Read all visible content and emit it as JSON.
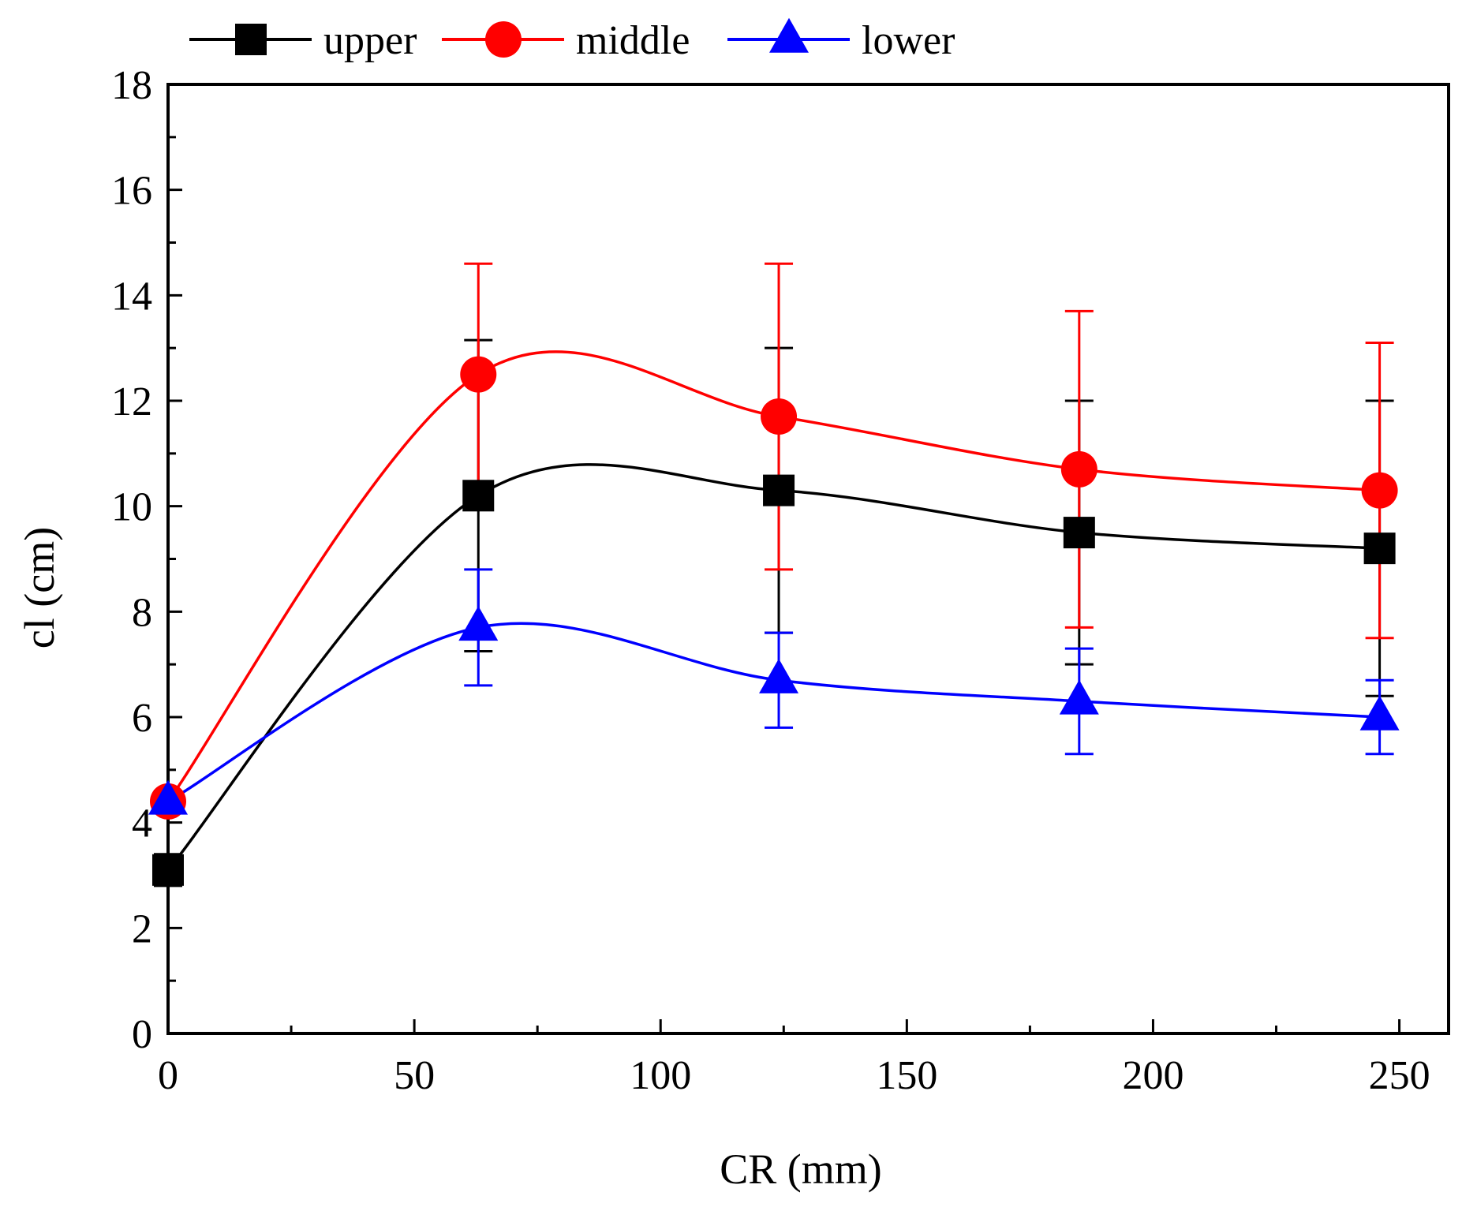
{
  "chart_data": {
    "type": "line",
    "xlabel": "CR (mm)",
    "ylabel": "cl (cm)",
    "xlim": [
      0,
      260
    ],
    "ylim": [
      0,
      18
    ],
    "x_ticks": [
      0,
      50,
      100,
      150,
      200,
      250
    ],
    "y_ticks": [
      0,
      2,
      4,
      6,
      8,
      10,
      12,
      14,
      16,
      18
    ],
    "grid": false,
    "legend_position": "top",
    "x": [
      0,
      63,
      124,
      185,
      246
    ],
    "series": [
      {
        "name": "upper",
        "color": "#000000",
        "marker": "square",
        "values": [
          3.1,
          10.2,
          10.3,
          9.5,
          9.2
        ],
        "error": [
          0.3,
          2.95,
          2.7,
          2.5,
          2.8
        ]
      },
      {
        "name": "middle",
        "color": "#ff0000",
        "marker": "circle",
        "values": [
          4.4,
          12.5,
          11.7,
          10.7,
          10.3
        ],
        "error": [
          0.2,
          2.1,
          2.9,
          3.0,
          2.8
        ]
      },
      {
        "name": "lower",
        "color": "#0000ff",
        "marker": "triangle",
        "values": [
          4.4,
          7.7,
          6.7,
          6.3,
          6.0
        ],
        "error": [
          0.2,
          1.1,
          0.9,
          1.0,
          0.7
        ]
      }
    ]
  }
}
